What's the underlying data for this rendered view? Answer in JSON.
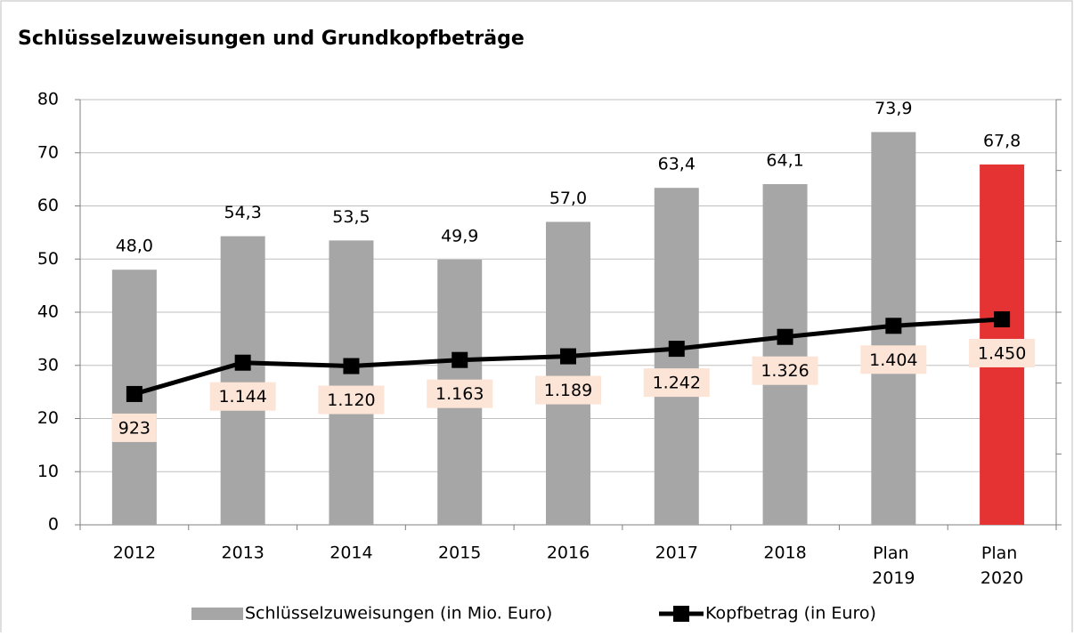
{
  "chart_data": {
    "type": "bar",
    "title": "Schlüsselzuweisungen und Grundkopfbeträge",
    "categories": [
      "2012",
      "2013",
      "2014",
      "2015",
      "2016",
      "2017",
      "2018",
      "Plan 2019",
      "Plan 2020"
    ],
    "series": [
      {
        "name": "Schlüsselzuweisungen (in Mio. Euro)",
        "type": "bar",
        "color": "#a6a6a6",
        "colors": [
          "#a6a6a6",
          "#a6a6a6",
          "#a6a6a6",
          "#a6a6a6",
          "#a6a6a6",
          "#a6a6a6",
          "#a6a6a6",
          "#a6a6a6",
          "#e53232"
        ],
        "values": [
          48.0,
          54.3,
          53.5,
          49.9,
          57.0,
          63.4,
          64.1,
          73.9,
          67.8
        ],
        "value_labels": [
          "48,0",
          "54,3",
          "53,5",
          "49,9",
          "57,0",
          "63,4",
          "64,1",
          "73,9",
          "67,8"
        ]
      },
      {
        "name": "Kopfbetrag (in Euro)",
        "type": "line",
        "color": "#000000",
        "axis": "y2",
        "values": [
          923,
          1144,
          1120,
          1163,
          1189,
          1242,
          1326,
          1404,
          1450
        ],
        "value_labels": [
          "923",
          "1.144",
          "1.120",
          "1.163",
          "1.189",
          "1.242",
          "1.326",
          "1.404",
          "1.450"
        ]
      }
    ],
    "ylim": [
      0,
      80
    ],
    "yticks": [
      0,
      10,
      20,
      30,
      40,
      50,
      60,
      70,
      80
    ],
    "y2lim": [
      0,
      3000
    ],
    "y2ticks": [
      0,
      500,
      1000,
      1500,
      2000,
      2500,
      3000
    ],
    "grid": true,
    "legend": "bottom"
  }
}
